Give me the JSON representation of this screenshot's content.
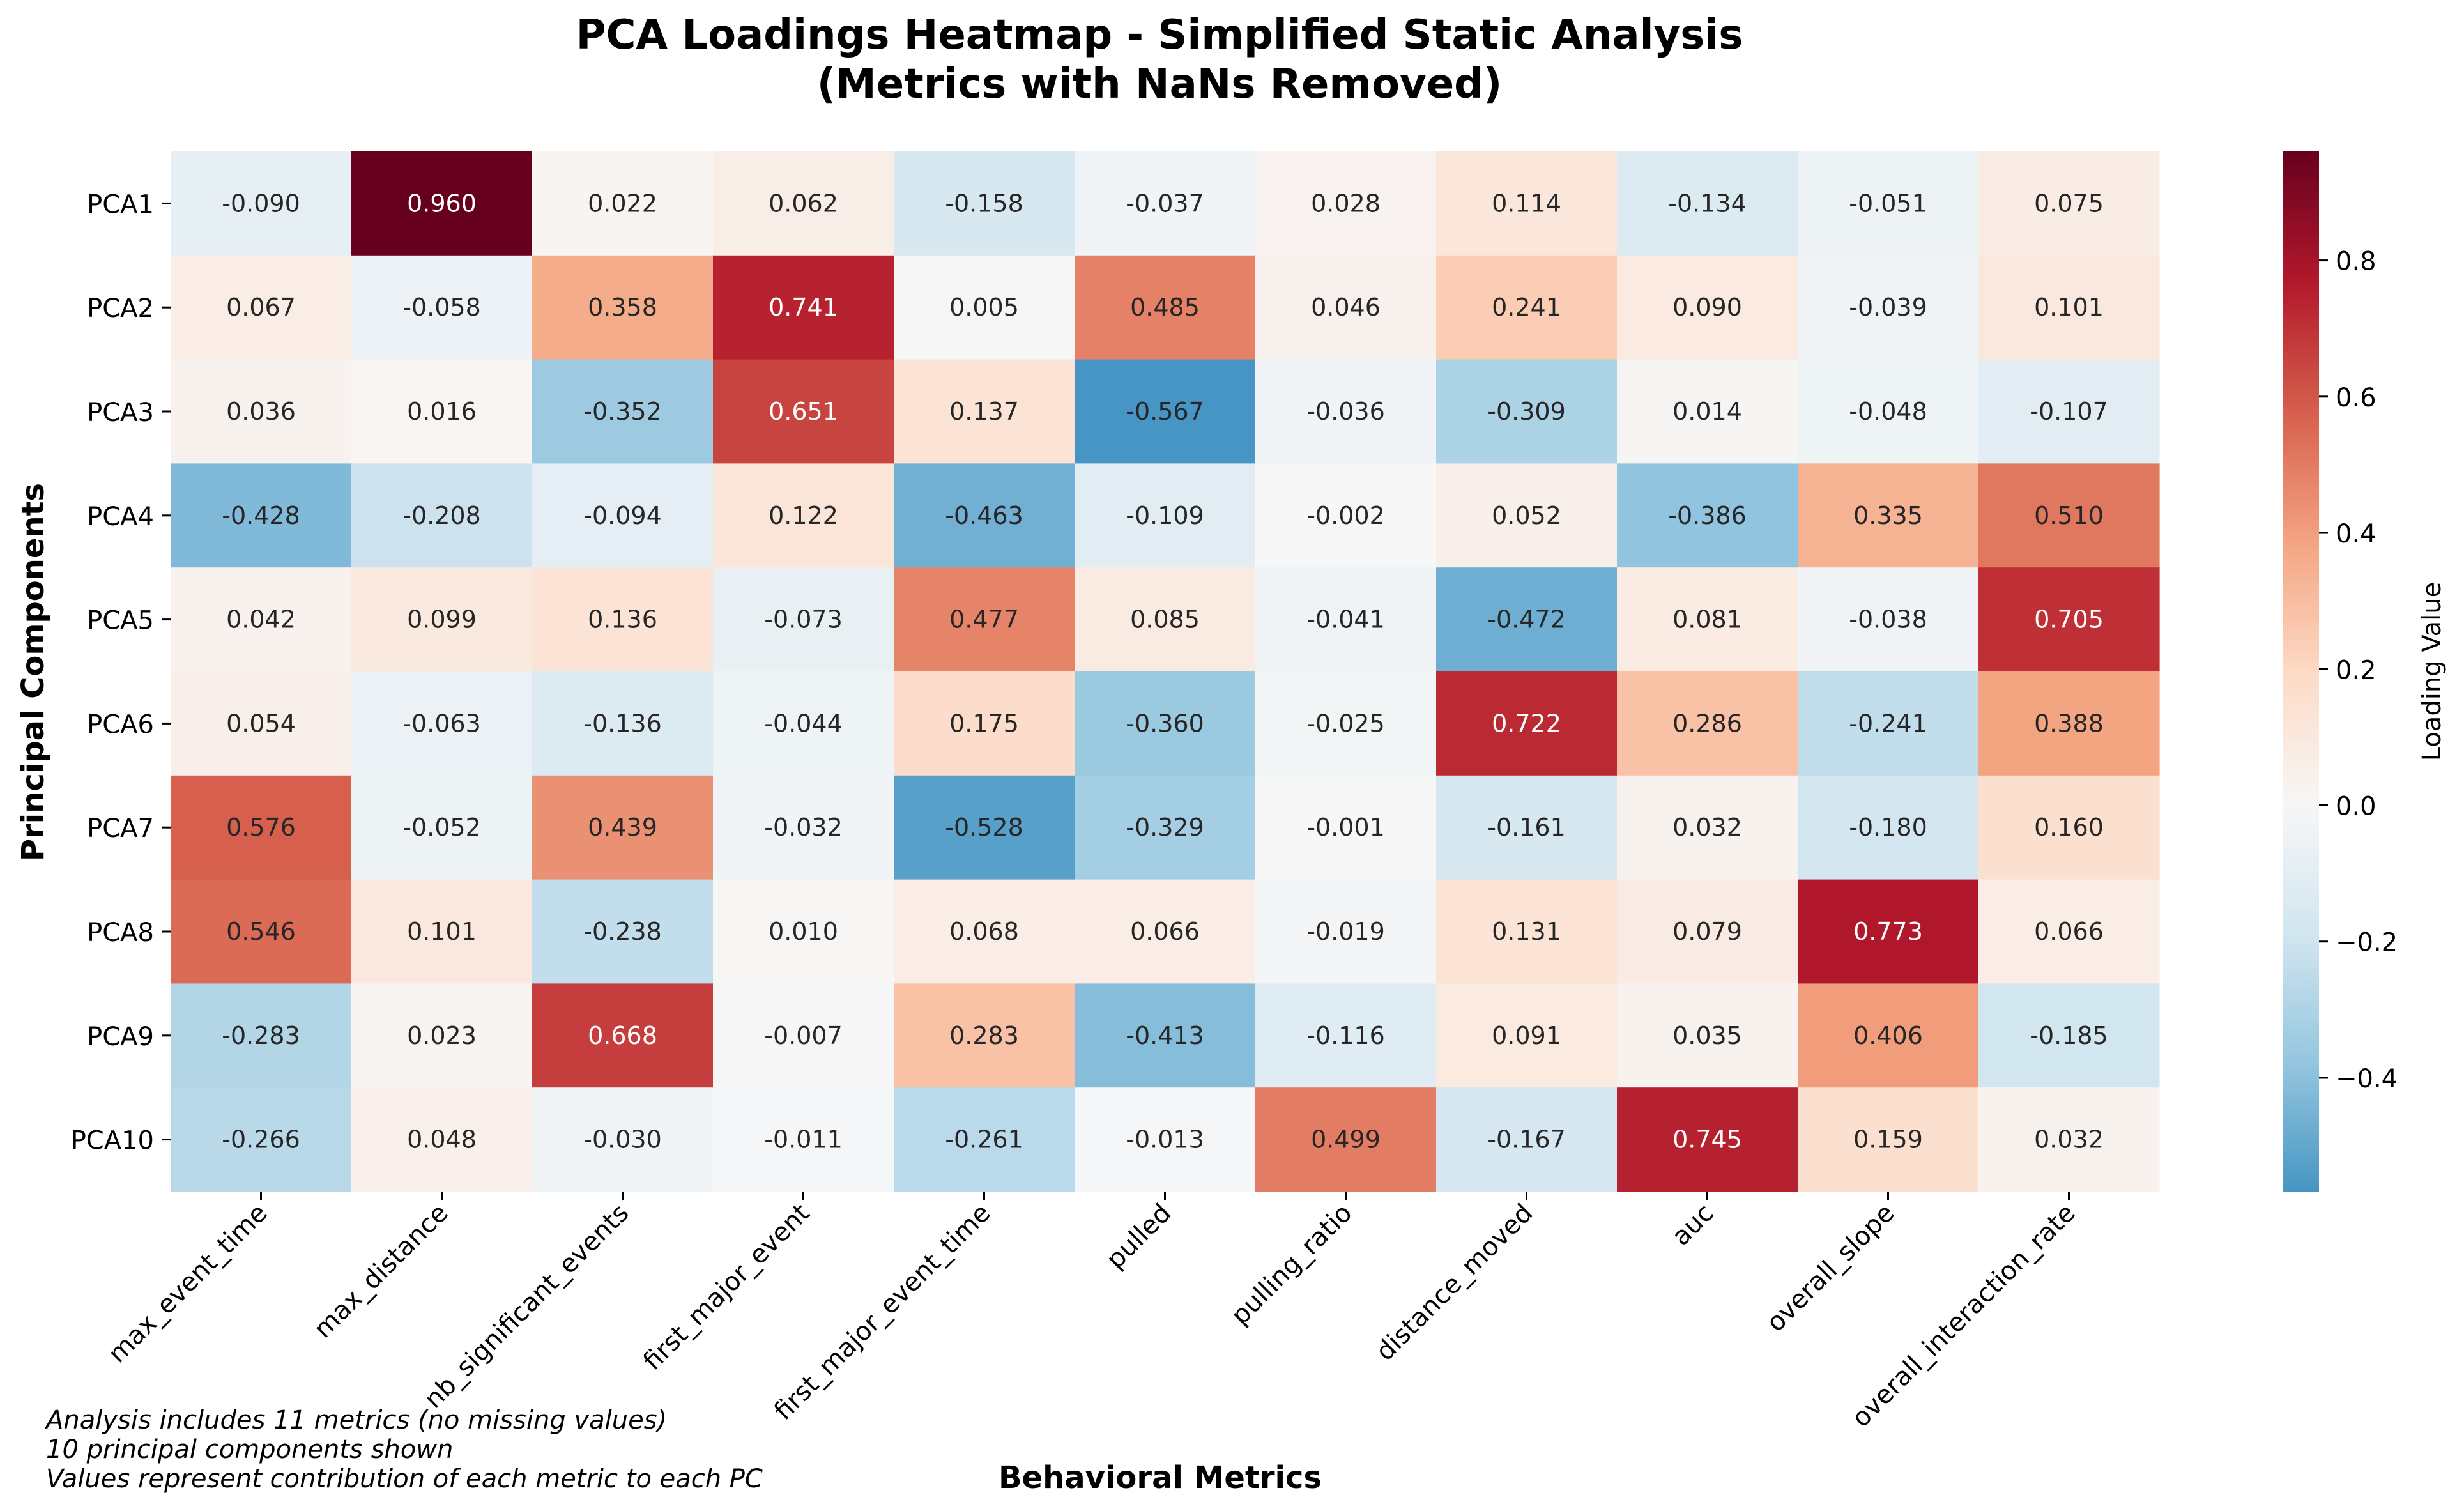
{
  "chart_data": {
    "type": "heatmap",
    "title_lines": [
      "PCA Loadings Heatmap - Simplified Static Analysis",
      "(Metrics with NaNs Removed)"
    ],
    "xlabel": "Behavioral Metrics",
    "ylabel": "Principal Components",
    "x": [
      "max_event_time",
      "max_distance",
      "nb_significant_events",
      "first_major_event",
      "first_major_event_time",
      "pulled",
      "pulling_ratio",
      "distance_moved",
      "auc",
      "overall_slope",
      "overall_interaction_rate"
    ],
    "y": [
      "PCA1",
      "PCA2",
      "PCA3",
      "PCA4",
      "PCA5",
      "PCA6",
      "PCA7",
      "PCA8",
      "PCA9",
      "PCA10"
    ],
    "values": [
      [
        -0.09,
        0.96,
        0.022,
        0.062,
        -0.158,
        -0.037,
        0.028,
        0.114,
        -0.134,
        -0.051,
        0.075
      ],
      [
        0.067,
        -0.058,
        0.358,
        0.741,
        0.005,
        0.485,
        0.046,
        0.241,
        0.09,
        -0.039,
        0.101
      ],
      [
        0.036,
        0.016,
        -0.352,
        0.651,
        0.137,
        -0.567,
        -0.036,
        -0.309,
        0.014,
        -0.048,
        -0.107
      ],
      [
        -0.428,
        -0.208,
        -0.094,
        0.122,
        -0.463,
        -0.109,
        -0.002,
        0.052,
        -0.386,
        0.335,
        0.51
      ],
      [
        0.042,
        0.099,
        0.136,
        -0.073,
        0.477,
        0.085,
        -0.041,
        -0.472,
        0.081,
        -0.038,
        0.705
      ],
      [
        0.054,
        -0.063,
        -0.136,
        -0.044,
        0.175,
        -0.36,
        -0.025,
        0.722,
        0.286,
        -0.241,
        0.388
      ],
      [
        0.576,
        -0.052,
        0.439,
        -0.032,
        -0.528,
        -0.329,
        -0.001,
        -0.161,
        0.032,
        -0.18,
        0.16
      ],
      [
        0.546,
        0.101,
        -0.238,
        0.01,
        0.068,
        0.066,
        -0.019,
        0.131,
        0.079,
        0.773,
        0.066
      ],
      [
        -0.283,
        0.023,
        0.668,
        -0.007,
        0.283,
        -0.413,
        -0.116,
        0.091,
        0.035,
        0.406,
        -0.185
      ],
      [
        -0.266,
        0.048,
        -0.03,
        -0.011,
        -0.261,
        -0.013,
        0.499,
        -0.167,
        0.745,
        0.159,
        0.032
      ]
    ],
    "colorbar": {
      "label": "Loading Value",
      "colormap": "RdBu_r",
      "center": 0.0,
      "vmin": -0.567,
      "vmax": 0.96,
      "ticks": [
        "−0.4",
        "−0.2",
        "0.0",
        "0.2",
        "0.4",
        "0.6",
        "0.8"
      ],
      "tick_values": [
        -0.4,
        -0.2,
        0.0,
        0.2,
        0.4,
        0.6,
        0.8
      ]
    },
    "annotation_lines": [
      "Analysis includes 11 metrics (no missing values)",
      "10 principal components shown",
      "Values represent contribution of each metric to each PC"
    ]
  }
}
